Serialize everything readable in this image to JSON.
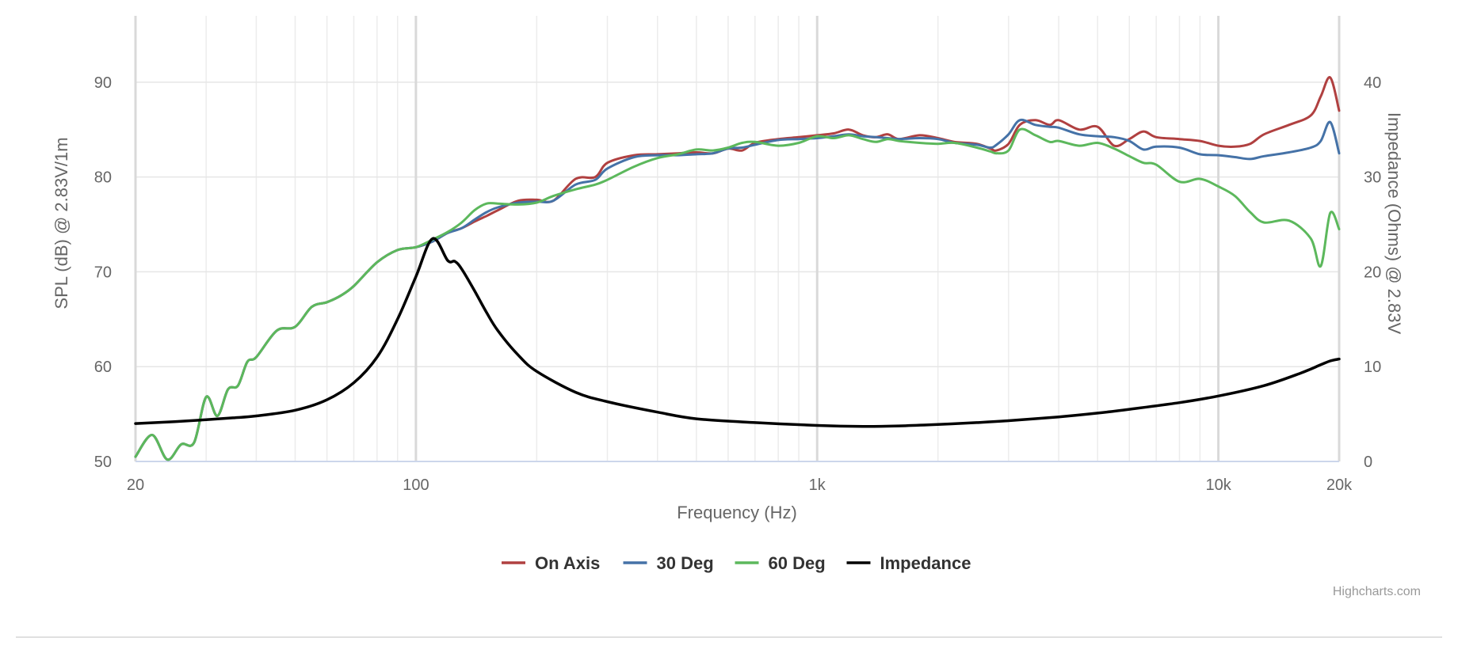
{
  "chart_data": {
    "type": "line",
    "xlabel": "Frequency (Hz)",
    "ylabel": "SPL (dB) @ 2.83V/1m",
    "y2label": "Impedance (Ohms) @ 2.83V",
    "x_scale": "log",
    "xlim": [
      20,
      20000
    ],
    "ylim": [
      50,
      97
    ],
    "y2lim": [
      0,
      47
    ],
    "x_ticks": [
      {
        "value": 20,
        "label": "20"
      },
      {
        "value": 100,
        "label": "100"
      },
      {
        "value": 1000,
        "label": "1k"
      },
      {
        "value": 10000,
        "label": "10k"
      },
      {
        "value": 20000,
        "label": "20k"
      }
    ],
    "y_ticks": [
      {
        "value": 50,
        "label": "50"
      },
      {
        "value": 60,
        "label": "60"
      },
      {
        "value": 70,
        "label": "70"
      },
      {
        "value": 80,
        "label": "80"
      },
      {
        "value": 90,
        "label": "90"
      }
    ],
    "y2_ticks": [
      {
        "value": 0,
        "label": "0"
      },
      {
        "value": 10,
        "label": "10"
      },
      {
        "value": 20,
        "label": "20"
      },
      {
        "value": 30,
        "label": "30"
      },
      {
        "value": 40,
        "label": "40"
      }
    ],
    "legend_position": "bottom-center",
    "grid": true,
    "series": [
      {
        "name": "On Axis",
        "color": "#b04040",
        "axis": "left",
        "x": [
          20,
          22,
          24,
          26,
          28,
          30,
          32,
          34,
          36,
          38,
          40,
          45,
          50,
          55,
          60,
          65,
          70,
          80,
          90,
          100,
          110,
          120,
          130,
          140,
          150,
          160,
          180,
          200,
          220,
          250,
          280,
          300,
          350,
          400,
          450,
          500,
          550,
          600,
          650,
          700,
          800,
          900,
          1000,
          1100,
          1200,
          1300,
          1400,
          1500,
          1600,
          1800,
          2000,
          2200,
          2500,
          2700,
          2800,
          3000,
          3200,
          3500,
          3800,
          4000,
          4500,
          5000,
          5500,
          6000,
          6500,
          7000,
          8000,
          9000,
          10000,
          11000,
          12000,
          13000,
          15000,
          17000,
          18000,
          19000,
          20000
        ],
        "y": [
          50.5,
          52.8,
          50.2,
          51.8,
          52,
          56.8,
          54.8,
          57.6,
          58,
          60.5,
          61,
          63.8,
          64.2,
          66.3,
          66.8,
          67.5,
          68.5,
          71,
          72.3,
          72.6,
          73.2,
          74.1,
          74.6,
          75.3,
          75.9,
          76.5,
          77.5,
          77.6,
          77.5,
          79.8,
          80,
          81.5,
          82.3,
          82.4,
          82.5,
          82.6,
          82.5,
          83,
          82.8,
          83.6,
          84,
          84.2,
          84.4,
          84.6,
          85,
          84.4,
          84.2,
          84.5,
          84,
          84.4,
          84.1,
          83.7,
          83.5,
          83,
          82.8,
          83.5,
          85.5,
          86,
          85.5,
          86,
          85,
          85.3,
          83.3,
          84,
          84.8,
          84.2,
          84,
          83.8,
          83.3,
          83.2,
          83.5,
          84.5,
          85.5,
          86.5,
          88.5,
          90.5,
          87
        ]
      },
      {
        "name": "30 Deg",
        "color": "#4572a7",
        "axis": "left",
        "x": [
          20,
          22,
          24,
          26,
          28,
          30,
          32,
          34,
          36,
          38,
          40,
          45,
          50,
          55,
          60,
          65,
          70,
          80,
          90,
          100,
          110,
          120,
          130,
          140,
          150,
          160,
          180,
          200,
          220,
          250,
          280,
          300,
          350,
          400,
          450,
          500,
          550,
          600,
          650,
          700,
          800,
          900,
          1000,
          1100,
          1200,
          1300,
          1400,
          1500,
          1600,
          1800,
          2000,
          2200,
          2500,
          2700,
          2800,
          3000,
          3200,
          3500,
          3800,
          4000,
          4500,
          5000,
          5500,
          6000,
          6500,
          7000,
          8000,
          9000,
          10000,
          11000,
          12000,
          13000,
          15000,
          17000,
          18000,
          19000,
          20000
        ],
        "y": [
          50.5,
          52.8,
          50.2,
          51.8,
          52,
          56.8,
          54.8,
          57.6,
          58,
          60.5,
          61,
          63.8,
          64.2,
          66.3,
          66.8,
          67.5,
          68.5,
          71,
          72.3,
          72.6,
          73.2,
          74.1,
          74.6,
          75.5,
          76.3,
          76.8,
          77.3,
          77.4,
          77.5,
          79.2,
          79.7,
          80.9,
          82.1,
          82.3,
          82.3,
          82.4,
          82.5,
          83,
          83.1,
          83.4,
          83.9,
          84,
          84.1,
          84.3,
          84.5,
          84.3,
          84.2,
          84.1,
          84,
          84.1,
          84,
          83.6,
          83.4,
          83.1,
          83.4,
          84.5,
          86,
          85.5,
          85.3,
          85.2,
          84.5,
          84.3,
          84.2,
          83.8,
          82.9,
          83.2,
          83.1,
          82.4,
          82.3,
          82.1,
          81.9,
          82.2,
          82.6,
          83.1,
          83.8,
          85.8,
          82.5
        ]
      },
      {
        "name": "60 Deg",
        "color": "#5cb85c",
        "axis": "left",
        "x": [
          20,
          22,
          24,
          26,
          28,
          30,
          32,
          34,
          36,
          38,
          40,
          45,
          50,
          55,
          60,
          65,
          70,
          80,
          90,
          100,
          110,
          120,
          130,
          140,
          150,
          160,
          180,
          200,
          220,
          250,
          280,
          300,
          350,
          400,
          450,
          500,
          550,
          600,
          650,
          700,
          800,
          900,
          1000,
          1100,
          1200,
          1300,
          1400,
          1500,
          1600,
          1800,
          2000,
          2200,
          2500,
          2700,
          2800,
          3000,
          3200,
          3500,
          3800,
          4000,
          4500,
          5000,
          5500,
          6000,
          6500,
          7000,
          8000,
          9000,
          10000,
          11000,
          12000,
          13000,
          15000,
          17000,
          18000,
          19000,
          20000
        ],
        "y": [
          50.5,
          52.8,
          50.2,
          51.8,
          52,
          56.8,
          54.8,
          57.6,
          58,
          60.5,
          61,
          63.8,
          64.2,
          66.3,
          66.8,
          67.5,
          68.5,
          71,
          72.3,
          72.6,
          73.4,
          74.2,
          75.2,
          76.5,
          77.2,
          77.2,
          77.1,
          77.3,
          78,
          78.7,
          79.2,
          79.7,
          81.1,
          82,
          82.4,
          82.9,
          82.8,
          83.1,
          83.6,
          83.7,
          83.3,
          83.6,
          84.3,
          84.1,
          84.4,
          84,
          83.7,
          84,
          83.8,
          83.6,
          83.5,
          83.6,
          83.1,
          82.7,
          82.5,
          82.8,
          85,
          84.4,
          83.7,
          83.8,
          83.3,
          83.6,
          83,
          82.2,
          81.5,
          81.3,
          79.5,
          79.8,
          79,
          78,
          76.3,
          75.2,
          75.4,
          73.5,
          70.6,
          76.2,
          74.5
        ]
      },
      {
        "name": "Impedance",
        "color": "#000000",
        "axis": "right",
        "x": [
          20,
          25,
          30,
          35,
          40,
          50,
          60,
          70,
          80,
          90,
          100,
          110,
          120,
          125,
          130,
          140,
          150,
          160,
          180,
          200,
          250,
          300,
          400,
          500,
          700,
          1000,
          1300,
          1600,
          2000,
          2500,
          3000,
          4000,
          5000,
          6000,
          8000,
          10000,
          13000,
          16000,
          18000,
          19000,
          20000
        ],
        "y": [
          4,
          4.2,
          4.4,
          4.6,
          4.8,
          5.4,
          6.5,
          8.3,
          11,
          15,
          19.5,
          23.5,
          21.2,
          21.1,
          20.3,
          18,
          15.7,
          13.8,
          11.2,
          9.5,
          7.3,
          6.3,
          5.2,
          4.5,
          4.1,
          3.8,
          3.7,
          3.75,
          3.9,
          4.1,
          4.3,
          4.7,
          5.1,
          5.5,
          6.2,
          6.9,
          8,
          9.3,
          10.2,
          10.6,
          10.8
        ]
      }
    ]
  },
  "credits": "Highcharts.com"
}
